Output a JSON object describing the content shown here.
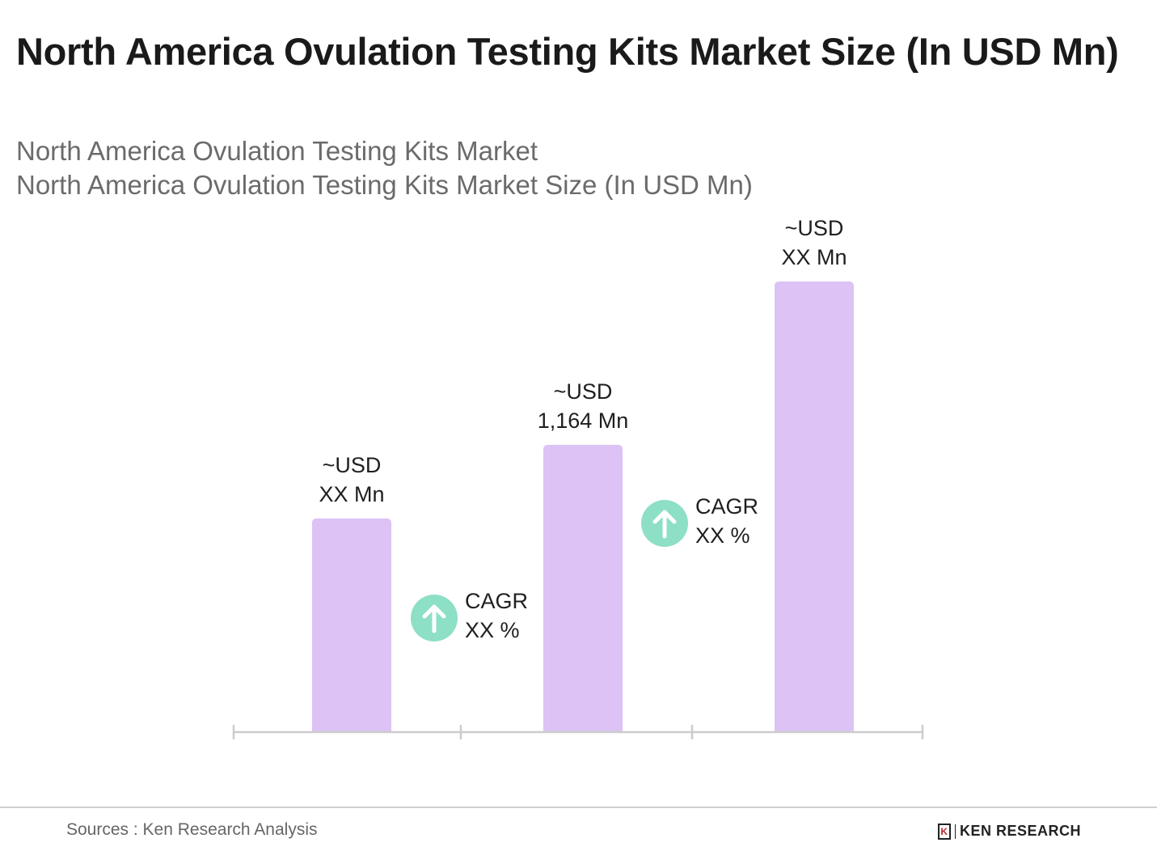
{
  "chart_data": {
    "type": "bar",
    "title": "North America Ovulation Testing Kits Market Size (In USD Mn)",
    "subtitle_lines": [
      "North America Ovulation Testing Kits Market",
      "North America Ovulation Testing Kits Market Size (In USD Mn)"
    ],
    "categories": [
      "",
      "",
      ""
    ],
    "values": [
      866,
      1164,
      1826
    ],
    "data_labels": [
      [
        "~USD",
        "XX Mn"
      ],
      [
        "~USD",
        "1,164 Mn"
      ],
      [
        "~USD",
        "XX Mn"
      ]
    ],
    "cagr_annotations": [
      [
        "CAGR",
        "XX %"
      ],
      [
        "CAGR",
        "XX %"
      ]
    ],
    "ylim": [
      0,
      2000
    ],
    "grid": false,
    "xlabel": "",
    "ylabel": "",
    "colors": {
      "bar": "#dcc2f5",
      "cagr_icon": "#8ddfc6",
      "axis": "#cccccc"
    },
    "icons": [
      "arrow-up-circle-icon"
    ]
  },
  "footer": {
    "source": "Sources : Ken Research Analysis",
    "logo_text": "KEN RESEARCH"
  }
}
